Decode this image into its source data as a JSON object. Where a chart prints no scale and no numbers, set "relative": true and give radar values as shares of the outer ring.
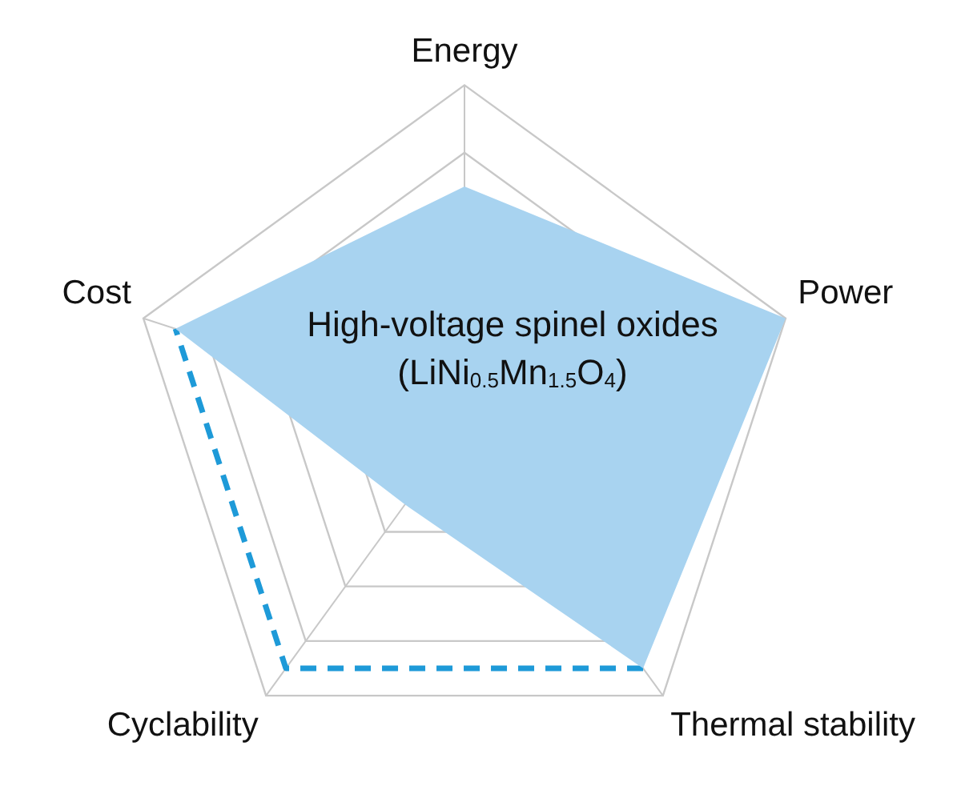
{
  "chart_data": {
    "type": "radar",
    "relative": true,
    "categories": [
      "Energy",
      "Power",
      "Thermal stability",
      "Cyclability",
      "Cost"
    ],
    "series": [
      {
        "color": "#a8d3f0",
        "values": [
          0.7,
          1.0,
          0.9,
          0.3,
          0.9
        ]
      },
      {
        "color": "#1e9ad8",
        "line_style": "dashed",
        "values": [
          null,
          null,
          0.9,
          0.9,
          0.9
        ]
      }
    ],
    "annotations": [
      "High-voltage spinel oxides (LiNi$_{0.5}$Mn$_{1.5}$O$_{4}$)"
    ],
    "grid": true,
    "legend": false,
    "marker": "none"
  }
}
